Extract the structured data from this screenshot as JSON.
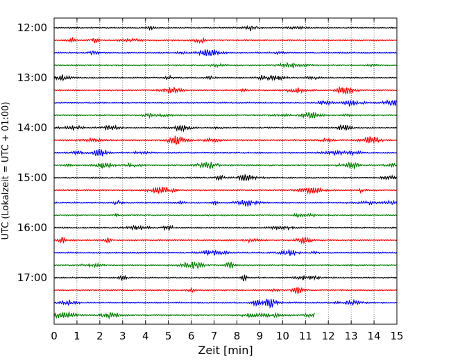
{
  "chart_data": {
    "type": "line",
    "xlabel": "Zeit  [min]",
    "ylabel": "UTC (Lokalzeit = UTC + 01:00)",
    "xlim": [
      0,
      15
    ],
    "xticks": [
      0,
      1,
      2,
      3,
      4,
      5,
      6,
      7,
      8,
      9,
      10,
      11,
      12,
      13,
      14,
      15
    ],
    "hour_labels": [
      "12:00",
      "13:00",
      "14:00",
      "15:00",
      "16:00",
      "17:00"
    ],
    "trace_interval_minutes": 15,
    "grid": "vertical dotted at each minute",
    "trace_colors": [
      "#000000",
      "#ff0000",
      "#0000ff",
      "#008000"
    ],
    "traces": [
      {
        "start": "12:00",
        "color": "#000000",
        "end_minute": 15
      },
      {
        "start": "12:15",
        "color": "#ff0000",
        "end_minute": 15
      },
      {
        "start": "12:30",
        "color": "#0000ff",
        "end_minute": 15
      },
      {
        "start": "12:45",
        "color": "#008000",
        "end_minute": 15
      },
      {
        "start": "13:00",
        "color": "#000000",
        "end_minute": 15
      },
      {
        "start": "13:15",
        "color": "#ff0000",
        "end_minute": 15
      },
      {
        "start": "13:30",
        "color": "#0000ff",
        "end_minute": 15
      },
      {
        "start": "13:45",
        "color": "#008000",
        "end_minute": 15
      },
      {
        "start": "14:00",
        "color": "#000000",
        "end_minute": 15
      },
      {
        "start": "14:15",
        "color": "#ff0000",
        "end_minute": 15
      },
      {
        "start": "14:30",
        "color": "#0000ff",
        "end_minute": 15
      },
      {
        "start": "14:45",
        "color": "#008000",
        "end_minute": 15
      },
      {
        "start": "15:00",
        "color": "#000000",
        "end_minute": 15
      },
      {
        "start": "15:15",
        "color": "#ff0000",
        "end_minute": 15
      },
      {
        "start": "15:30",
        "color": "#0000ff",
        "end_minute": 15
      },
      {
        "start": "15:45",
        "color": "#008000",
        "end_minute": 15
      },
      {
        "start": "16:00",
        "color": "#000000",
        "end_minute": 15
      },
      {
        "start": "16:15",
        "color": "#ff0000",
        "end_minute": 15
      },
      {
        "start": "16:30",
        "color": "#0000ff",
        "end_minute": 15
      },
      {
        "start": "16:45",
        "color": "#008000",
        "end_minute": 15
      },
      {
        "start": "17:00",
        "color": "#000000",
        "end_minute": 15
      },
      {
        "start": "17:15",
        "color": "#ff0000",
        "end_minute": 15
      },
      {
        "start": "17:30",
        "color": "#0000ff",
        "end_minute": 15
      },
      {
        "start": "17:45",
        "color": "#008000",
        "end_minute": 11.4
      }
    ]
  }
}
